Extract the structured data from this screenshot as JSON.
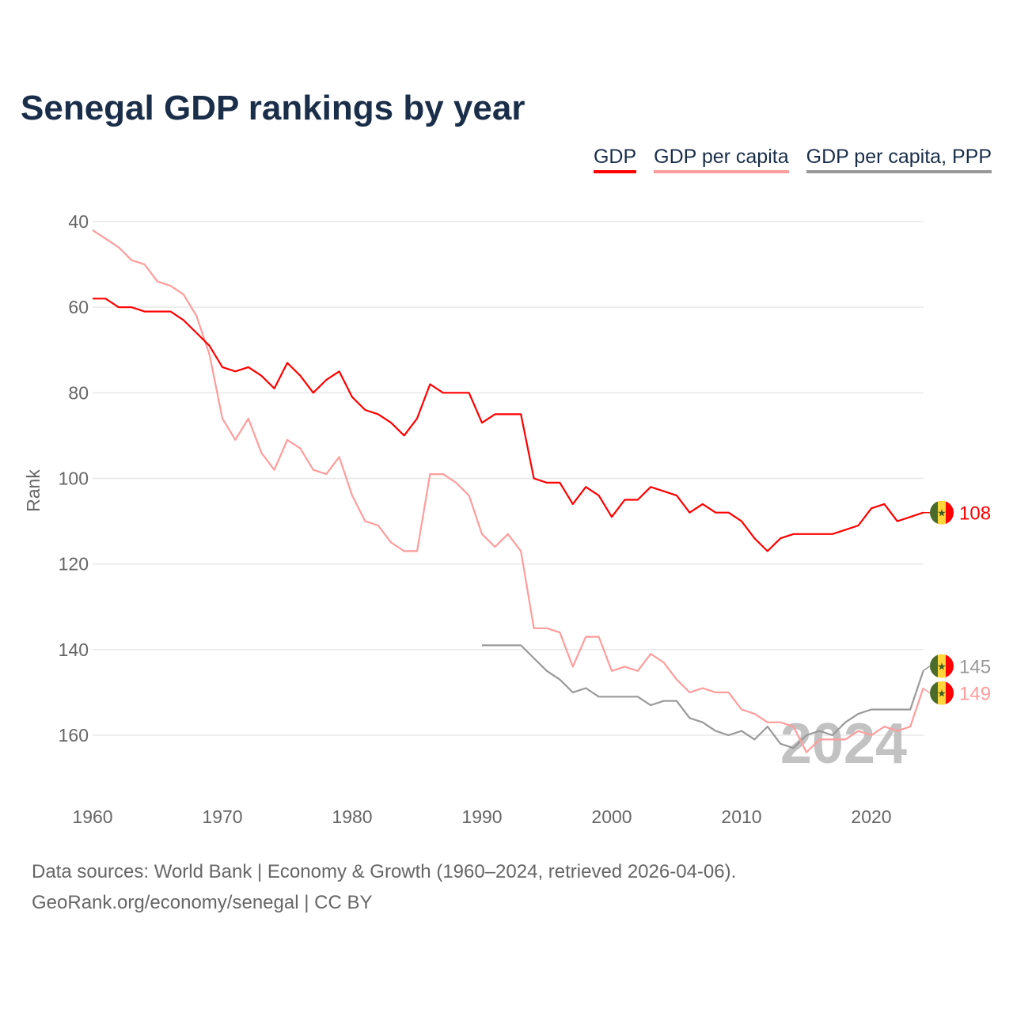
{
  "chart_data": {
    "type": "line",
    "title": "Senegal GDP rankings by year",
    "xlabel": "",
    "ylabel": "Rank",
    "xlim": [
      1960,
      2024
    ],
    "ylim": [
      40,
      170
    ],
    "y_inverted": true,
    "x_ticks": [
      "1960",
      "1970",
      "1980",
      "1990",
      "2000",
      "2010",
      "2020"
    ],
    "y_ticks": [
      "40",
      "60",
      "80",
      "100",
      "120",
      "140",
      "160"
    ],
    "grid": true,
    "legend_position": "top-right",
    "watermark_year": "2024",
    "series": [
      {
        "name": "GDP",
        "color": "#ff0000",
        "start": 1960,
        "final_label": "108",
        "values": [
          58,
          58,
          60,
          60,
          61,
          61,
          61,
          63,
          66,
          69,
          74,
          75,
          74,
          76,
          79,
          73,
          76,
          80,
          77,
          75,
          81,
          84,
          85,
          87,
          90,
          86,
          78,
          80,
          80,
          80,
          87,
          85,
          85,
          85,
          100,
          101,
          101,
          106,
          102,
          104,
          109,
          105,
          105,
          102,
          103,
          104,
          108,
          106,
          108,
          108,
          110,
          114,
          117,
          114,
          113,
          113,
          113,
          113,
          112,
          111,
          107,
          106,
          110,
          109,
          108
        ]
      },
      {
        "name": "GDP per capita",
        "color": "#ff9c9c",
        "start": 1960,
        "final_label": "149",
        "values": [
          42,
          44,
          46,
          49,
          50,
          54,
          55,
          57,
          62,
          71,
          86,
          91,
          86,
          94,
          98,
          91,
          93,
          98,
          99,
          95,
          104,
          110,
          111,
          115,
          117,
          117,
          99,
          99,
          101,
          104,
          113,
          116,
          113,
          117,
          135,
          135,
          136,
          144,
          137,
          137,
          145,
          144,
          145,
          141,
          143,
          147,
          150,
          149,
          150,
          150,
          154,
          155,
          157,
          157,
          158,
          164,
          161,
          161,
          161,
          159,
          160,
          158,
          159,
          158,
          149
        ]
      },
      {
        "name": "GDP per capita, PPP",
        "color": "#999999",
        "start": 1990,
        "final_label": "145",
        "values": [
          139,
          139,
          139,
          139,
          142,
          145,
          147,
          150,
          149,
          151,
          151,
          151,
          151,
          153,
          152,
          152,
          156,
          157,
          159,
          160,
          159,
          161,
          158,
          162,
          163,
          160,
          159,
          160,
          157,
          155,
          154,
          154,
          154,
          154,
          145
        ]
      }
    ]
  },
  "footer": {
    "line1": "Data sources: World Bank | Economy & Growth (1960–2024, retrieved 2026-04-06).",
    "line2": "GeoRank.org/economy/senegal | CC BY"
  }
}
